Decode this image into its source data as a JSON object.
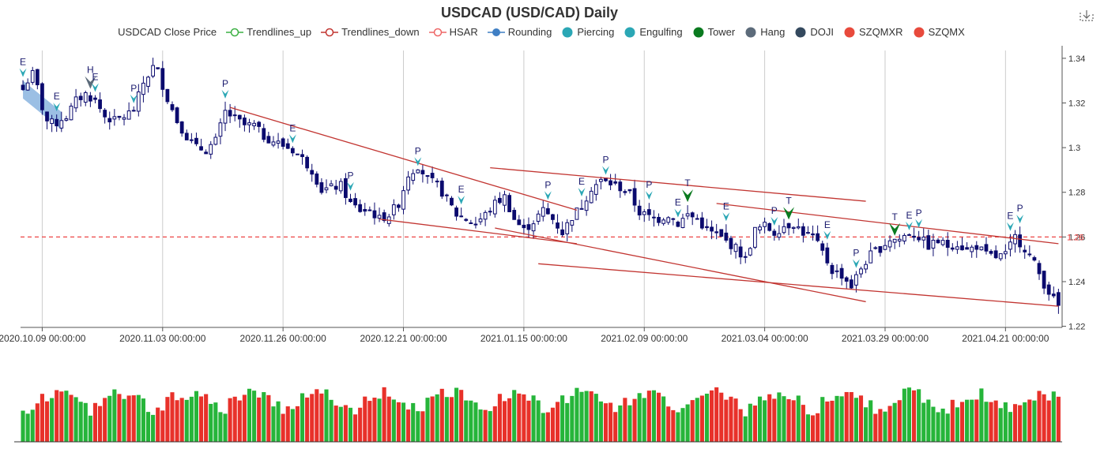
{
  "colors": {
    "bull": "#ffffff",
    "bear": "#0b0a6e",
    "axis": "#555555",
    "grid": "#cccccc",
    "trend": "#c23531",
    "hsar": "#ee4444",
    "signal": "#2ba7b5",
    "tower": "#0a7a1f",
    "hang": "#5c6b7a",
    "vol_up": "#26b53a",
    "vol_down": "#e8312a",
    "wedge": "#8ab4df"
  },
  "chart_data": {
    "type": "candlestick",
    "title": "USDCAD (USD/CAD) Daily",
    "legend": [
      {
        "name": "USDCAD Close Price",
        "icon": "none"
      },
      {
        "name": "Trendlines_up",
        "icon": "line-circle",
        "color": "#3cb043"
      },
      {
        "name": "Trendlines_down",
        "icon": "line-circle",
        "color": "#c23531"
      },
      {
        "name": "HSAR",
        "icon": "line-circle",
        "color": "#ee6666"
      },
      {
        "name": "Rounding",
        "icon": "line-dot",
        "color": "#3f7fc4"
      },
      {
        "name": "Piercing",
        "icon": "dot",
        "color": "#2ba7b5"
      },
      {
        "name": "Engulfing",
        "icon": "dot",
        "color": "#2ba7b5"
      },
      {
        "name": "Tower",
        "icon": "dot",
        "color": "#0a7a1f"
      },
      {
        "name": "Hang",
        "icon": "dot",
        "color": "#5c6b7a"
      },
      {
        "name": "DOJI",
        "icon": "dot",
        "color": "#34495e"
      },
      {
        "name": "SZQMXR",
        "icon": "dot",
        "color": "#e84a3c"
      },
      {
        "name": "SZQMX",
        "icon": "dot",
        "color": "#e84a3c"
      }
    ],
    "x_labels": [
      {
        "i": 4,
        "label": "2020.10.09 00:00:00"
      },
      {
        "i": 29,
        "label": "2020.11.03 00:00:00"
      },
      {
        "i": 54,
        "label": "2020.11.26 00:00:00"
      },
      {
        "i": 79,
        "label": "2020.12.21 00:00:00"
      },
      {
        "i": 104,
        "label": "2021.01.15 00:00:00"
      },
      {
        "i": 129,
        "label": "2021.02.09 00:00:00"
      },
      {
        "i": 154,
        "label": "2021.03.04 00:00:00"
      },
      {
        "i": 179,
        "label": "2021.03.29 00:00:00"
      },
      {
        "i": 204,
        "label": "2021.04.21 00:00:00"
      }
    ],
    "y_ticks": [
      1.22,
      1.24,
      1.26,
      1.28,
      1.3,
      1.32,
      1.34
    ],
    "y_tick_labels": [
      "1.22",
      "1.24",
      "1.26",
      "1.28",
      "1.3",
      "1.32",
      "1.34"
    ],
    "ylim": [
      1.2195,
      1.3435
    ],
    "hsar_level": 1.26,
    "hsar_label": "1.26",
    "close_anchors": [
      [
        0,
        1.326
      ],
      [
        1,
        1.33
      ],
      [
        2,
        1.333
      ],
      [
        3,
        1.327
      ],
      [
        4,
        1.318
      ],
      [
        5,
        1.312
      ],
      [
        6,
        1.311
      ],
      [
        7,
        1.311
      ],
      [
        8,
        1.313
      ],
      [
        9,
        1.314
      ],
      [
        11,
        1.321
      ],
      [
        13,
        1.324
      ],
      [
        15,
        1.321
      ],
      [
        17,
        1.314
      ],
      [
        19,
        1.312
      ],
      [
        21,
        1.314
      ],
      [
        23,
        1.317
      ],
      [
        25,
        1.329
      ],
      [
        27,
        1.336
      ],
      [
        28,
        1.334
      ],
      [
        30,
        1.322
      ],
      [
        32,
        1.312
      ],
      [
        34,
        1.305
      ],
      [
        36,
        1.3
      ],
      [
        38,
        1.299
      ],
      [
        40,
        1.303
      ],
      [
        42,
        1.316
      ],
      [
        44,
        1.313
      ],
      [
        46,
        1.31
      ],
      [
        48,
        1.31
      ],
      [
        50,
        1.305
      ],
      [
        52,
        1.303
      ],
      [
        54,
        1.301
      ],
      [
        56,
        1.299
      ],
      [
        58,
        1.295
      ],
      [
        60,
        1.29
      ],
      [
        62,
        1.281
      ],
      [
        64,
        1.282
      ],
      [
        66,
        1.283
      ],
      [
        68,
        1.275
      ],
      [
        70,
        1.272
      ],
      [
        72,
        1.272
      ],
      [
        74,
        1.268
      ],
      [
        76,
        1.27
      ],
      [
        78,
        1.275
      ],
      [
        80,
        1.288
      ],
      [
        82,
        1.292
      ],
      [
        84,
        1.286
      ],
      [
        86,
        1.283
      ],
      [
        88,
        1.277
      ],
      [
        90,
        1.27
      ],
      [
        92,
        1.268
      ],
      [
        94,
        1.266
      ],
      [
        96,
        1.27
      ],
      [
        98,
        1.275
      ],
      [
        100,
        1.278
      ],
      [
        102,
        1.268
      ],
      [
        104,
        1.263
      ],
      [
        106,
        1.267
      ],
      [
        108,
        1.272
      ],
      [
        110,
        1.268
      ],
      [
        112,
        1.262
      ],
      [
        114,
        1.269
      ],
      [
        116,
        1.274
      ],
      [
        118,
        1.282
      ],
      [
        120,
        1.285
      ],
      [
        122,
        1.284
      ],
      [
        124,
        1.282
      ],
      [
        126,
        1.279
      ],
      [
        128,
        1.271
      ],
      [
        130,
        1.269
      ],
      [
        132,
        1.268
      ],
      [
        134,
        1.27
      ],
      [
        136,
        1.266
      ],
      [
        138,
        1.27
      ],
      [
        140,
        1.268
      ],
      [
        142,
        1.263
      ],
      [
        144,
        1.261
      ],
      [
        146,
        1.258
      ],
      [
        148,
        1.255
      ],
      [
        150,
        1.25
      ],
      [
        152,
        1.263
      ],
      [
        154,
        1.265
      ],
      [
        156,
        1.262
      ],
      [
        158,
        1.265
      ],
      [
        160,
        1.266
      ],
      [
        162,
        1.262
      ],
      [
        164,
        1.26
      ],
      [
        166,
        1.253
      ],
      [
        168,
        1.245
      ],
      [
        170,
        1.243
      ],
      [
        172,
        1.238
      ],
      [
        174,
        1.246
      ],
      [
        176,
        1.252
      ],
      [
        178,
        1.255
      ],
      [
        180,
        1.259
      ],
      [
        182,
        1.259
      ],
      [
        184,
        1.262
      ],
      [
        186,
        1.26
      ],
      [
        188,
        1.256
      ],
      [
        190,
        1.258
      ],
      [
        192,
        1.256
      ],
      [
        194,
        1.257
      ],
      [
        196,
        1.254
      ],
      [
        198,
        1.256
      ],
      [
        200,
        1.252
      ],
      [
        202,
        1.251
      ],
      [
        204,
        1.252
      ],
      [
        206,
        1.26
      ],
      [
        208,
        1.255
      ],
      [
        210,
        1.248
      ],
      [
        212,
        1.239
      ],
      [
        214,
        1.232
      ],
      [
        215,
        1.229
      ]
    ],
    "trendlines": [
      {
        "type": "down",
        "from": [
          43,
          1.318
        ],
        "to": [
          115,
          1.272
        ]
      },
      {
        "type": "down",
        "from": [
          74,
          1.268
        ],
        "to": [
          115,
          1.257
        ]
      },
      {
        "type": "down",
        "from": [
          97,
          1.291
        ],
        "to": [
          175,
          1.276
        ]
      },
      {
        "type": "down",
        "from": [
          144,
          1.275
        ],
        "to": [
          215,
          1.257
        ]
      },
      {
        "type": "down",
        "from": [
          98,
          1.264
        ],
        "to": [
          175,
          1.231
        ]
      },
      {
        "type": "down",
        "from": [
          107,
          1.248
        ],
        "to": [
          215,
          1.229
        ]
      }
    ],
    "rounding": {
      "from": [
        0,
        1.326
      ],
      "to": [
        8,
        1.312
      ],
      "width": 0.004
    },
    "patterns": [
      {
        "i": 0,
        "label": "E",
        "kind": "Engulfing"
      },
      {
        "i": 7,
        "label": "E",
        "kind": "Engulfing"
      },
      {
        "i": 14,
        "label": "H",
        "kind": "Hang"
      },
      {
        "i": 15,
        "label": "E",
        "kind": "Engulfing"
      },
      {
        "i": 23,
        "label": "P",
        "kind": "Piercing"
      },
      {
        "i": 42,
        "label": "P",
        "kind": "Piercing"
      },
      {
        "i": 56,
        "label": "E",
        "kind": "Engulfing"
      },
      {
        "i": 68,
        "label": "P",
        "kind": "Piercing"
      },
      {
        "i": 82,
        "label": "P",
        "kind": "Piercing"
      },
      {
        "i": 91,
        "label": "E",
        "kind": "Engulfing"
      },
      {
        "i": 109,
        "label": "P",
        "kind": "Piercing"
      },
      {
        "i": 116,
        "label": "E",
        "kind": "Engulfing"
      },
      {
        "i": 121,
        "label": "P",
        "kind": "Piercing"
      },
      {
        "i": 130,
        "label": "P",
        "kind": "Piercing"
      },
      {
        "i": 136,
        "label": "E",
        "kind": "Engulfing"
      },
      {
        "i": 138,
        "label": "T",
        "kind": "Tower"
      },
      {
        "i": 146,
        "label": "E",
        "kind": "Engulfing"
      },
      {
        "i": 156,
        "label": "P",
        "kind": "Piercing"
      },
      {
        "i": 159,
        "label": "T",
        "kind": "Tower"
      },
      {
        "i": 167,
        "label": "E",
        "kind": "Engulfing"
      },
      {
        "i": 173,
        "label": "P",
        "kind": "Piercing"
      },
      {
        "i": 181,
        "label": "T",
        "kind": "Tower"
      },
      {
        "i": 184,
        "label": "E",
        "kind": "Engulfing"
      },
      {
        "i": 186,
        "label": "P",
        "kind": "Piercing"
      },
      {
        "i": 205,
        "label": "E",
        "kind": "Engulfing"
      },
      {
        "i": 207,
        "label": "P",
        "kind": "Piercing"
      }
    ]
  }
}
